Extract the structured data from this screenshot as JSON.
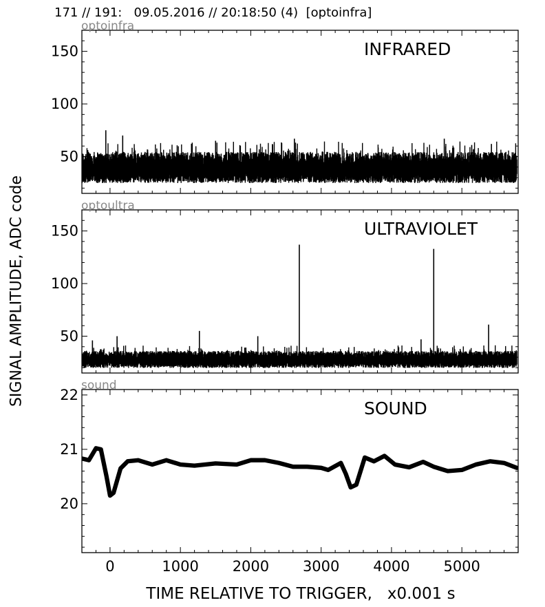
{
  "header": "171 // 191:   09.05.2016 // 20:18:50 (4)  [optoinfra]",
  "chart_data": {
    "type": "line",
    "xlabel": "TIME RELATIVE TO TRIGGER,   x0.001 s",
    "ylabel": "SIGNAL AMPLITUDE,  ADC code",
    "xlim": [
      -400,
      5800
    ],
    "x_ticks": [
      0,
      1000,
      2000,
      3000,
      4000,
      5000
    ],
    "x_tick_labels": [
      "0",
      "1000",
      "2000",
      "3000",
      "4000",
      "5000"
    ],
    "panels": [
      {
        "sensor_label": "optoinfra",
        "title": "INFRARED",
        "ylim": [
          15,
          170
        ],
        "y_ticks": [
          50,
          100,
          150
        ],
        "y_tick_labels": [
          "50",
          "100",
          "150"
        ],
        "series": [
          {
            "kind": "noise",
            "baseline": 38,
            "band": 22,
            "peaks": [
              [
                -60,
                75
              ],
              [
                180,
                70
              ],
              [
                1500,
                65
              ],
              [
                2620,
                67
              ],
              [
                4750,
                67
              ],
              [
                5420,
                62
              ],
              [
                5140,
                61
              ]
            ],
            "color": "#000000"
          }
        ]
      },
      {
        "sensor_label": "optoultra",
        "title": "ULTRAVIOLET",
        "ylim": [
          15,
          170
        ],
        "y_ticks": [
          50,
          100,
          150
        ],
        "y_tick_labels": [
          "50",
          "100",
          "150"
        ],
        "series": [
          {
            "kind": "noise",
            "baseline": 27,
            "band": 12,
            "peaks": [
              [
                -250,
                46
              ],
              [
                100,
                50
              ],
              [
                1270,
                55
              ],
              [
                2100,
                50
              ],
              [
                2690,
                137
              ],
              [
                4600,
                133
              ],
              [
                5380,
                61
              ],
              [
                4420,
                47
              ]
            ],
            "color": "#000000"
          }
        ]
      },
      {
        "sensor_label": "sound",
        "title": "SOUND",
        "ylim": [
          19.1,
          22.1
        ],
        "y_ticks": [
          20,
          21,
          22
        ],
        "y_tick_labels": [
          "20",
          "21",
          "22"
        ],
        "series": [
          {
            "kind": "curve",
            "thickness": 0.08,
            "points": [
              [
                -400,
                20.83
              ],
              [
                -300,
                20.8
              ],
              [
                -200,
                21.02
              ],
              [
                -130,
                21.0
              ],
              [
                -50,
                20.5
              ],
              [
                0,
                20.15
              ],
              [
                50,
                20.2
              ],
              [
                150,
                20.65
              ],
              [
                250,
                20.78
              ],
              [
                400,
                20.8
              ],
              [
                600,
                20.72
              ],
              [
                800,
                20.8
              ],
              [
                1000,
                20.72
              ],
              [
                1200,
                20.7
              ],
              [
                1500,
                20.74
              ],
              [
                1800,
                20.72
              ],
              [
                2000,
                20.8
              ],
              [
                2200,
                20.8
              ],
              [
                2400,
                20.75
              ],
              [
                2600,
                20.68
              ],
              [
                2800,
                20.68
              ],
              [
                3000,
                20.66
              ],
              [
                3100,
                20.62
              ],
              [
                3280,
                20.75
              ],
              [
                3350,
                20.55
              ],
              [
                3420,
                20.3
              ],
              [
                3500,
                20.35
              ],
              [
                3620,
                20.85
              ],
              [
                3750,
                20.78
              ],
              [
                3900,
                20.88
              ],
              [
                4050,
                20.72
              ],
              [
                4250,
                20.67
              ],
              [
                4450,
                20.77
              ],
              [
                4600,
                20.68
              ],
              [
                4800,
                20.6
              ],
              [
                5000,
                20.62
              ],
              [
                5200,
                20.72
              ],
              [
                5400,
                20.78
              ],
              [
                5600,
                20.75
              ],
              [
                5780,
                20.66
              ]
            ],
            "color": "#000000"
          }
        ]
      }
    ]
  }
}
